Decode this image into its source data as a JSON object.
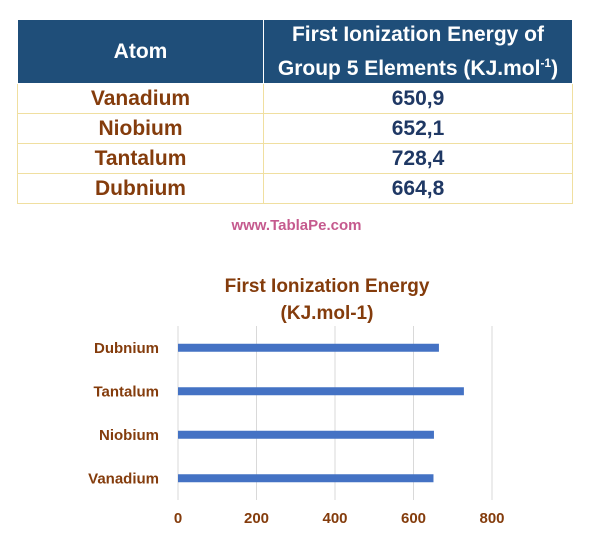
{
  "table": {
    "headers": {
      "atom": "Atom",
      "energy_line1": "First Ionization Energy of",
      "energy_line2": "Group 5 Elements (KJ.mol",
      "energy_sup": "-1",
      "energy_close": ")"
    },
    "rows": [
      {
        "atom": "Vanadium",
        "value": "650,9"
      },
      {
        "atom": "Niobium",
        "value": "652,1"
      },
      {
        "atom": "Tantalum",
        "value": "728,4"
      },
      {
        "atom": "Dubnium",
        "value": "664,8"
      }
    ]
  },
  "watermark": "www.TablaPe.com",
  "colors": {
    "header_bg": "#1f4e79",
    "bar": "#4472c4",
    "label": "#843c0c",
    "value_text": "#1f3864",
    "grid": "#d9d9d9"
  },
  "chart_data": {
    "type": "bar",
    "orientation": "horizontal",
    "title": [
      "First Ionization Energy",
      "(KJ.mol-1)"
    ],
    "categories": [
      "Vanadium",
      "Niobium",
      "Tantalum",
      "Dubnium"
    ],
    "values": [
      650.9,
      652.1,
      728.4,
      664.8
    ],
    "xlim": [
      0,
      800
    ],
    "xticks": [
      0,
      200,
      400,
      600,
      800
    ],
    "grid": true,
    "legend": "none"
  }
}
